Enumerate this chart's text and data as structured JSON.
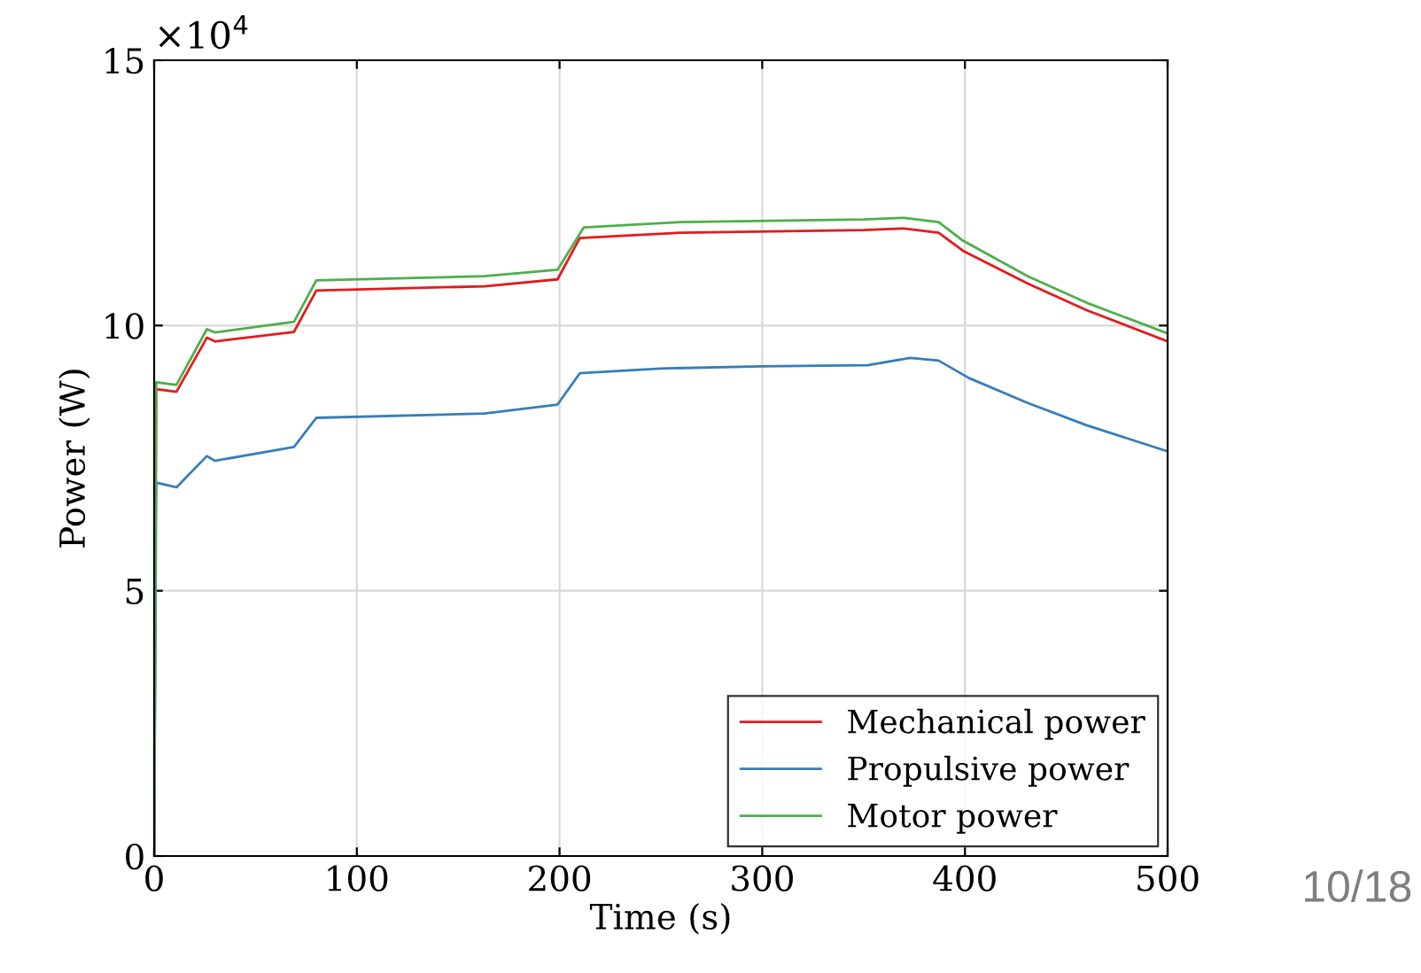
{
  "chart_data": {
    "type": "line",
    "xlabel": "Time (s)",
    "ylabel": "Power (W)",
    "xlim": [
      0,
      500
    ],
    "xticks": [
      0,
      100,
      200,
      300,
      400,
      500
    ],
    "ylim": [
      0,
      15
    ],
    "yticks": [
      0,
      5,
      10,
      15
    ],
    "grid": true,
    "legend": "bottom right",
    "marker": "none",
    "line_style": "solid",
    "annotations": [
      "×10$^{4}$",
      "10/18"
    ],
    "series": [
      {
        "name": "Mechanical power",
        "color": "#e41a1c",
        "x": [
          0,
          1,
          11,
          26,
          30,
          69,
          80,
          163,
          199,
          210,
          260,
          350,
          370,
          387,
          399,
          431,
          460,
          500
        ],
        "values": [
          0,
          8.8,
          8.75,
          9.77,
          9.7,
          9.88,
          10.66,
          10.74,
          10.87,
          11.65,
          11.75,
          11.8,
          11.83,
          11.75,
          11.41,
          10.79,
          10.29,
          9.7
        ]
      },
      {
        "name": "Propulsive power",
        "color": "#377eb8",
        "x": [
          0,
          1,
          11,
          26,
          30,
          69,
          80,
          163,
          199,
          210,
          250,
          300,
          352,
          373,
          387,
          402,
          431,
          460,
          499
        ],
        "values": [
          0,
          7.04,
          6.95,
          7.54,
          7.45,
          7.71,
          8.26,
          8.34,
          8.51,
          9.1,
          9.19,
          9.23,
          9.25,
          9.39,
          9.34,
          9.01,
          8.54,
          8.12,
          7.64
        ]
      },
      {
        "name": "Motor power",
        "color": "#4daf4a",
        "x": [
          0,
          1,
          11,
          26,
          30,
          69,
          80,
          163,
          199,
          212,
          260,
          350,
          370,
          387,
          399,
          431,
          460,
          500
        ],
        "values": [
          0,
          8.93,
          8.88,
          9.93,
          9.87,
          10.07,
          10.85,
          10.93,
          11.05,
          11.85,
          11.95,
          12.0,
          12.03,
          11.95,
          11.6,
          10.93,
          10.43,
          9.85
        ]
      }
    ]
  }
}
